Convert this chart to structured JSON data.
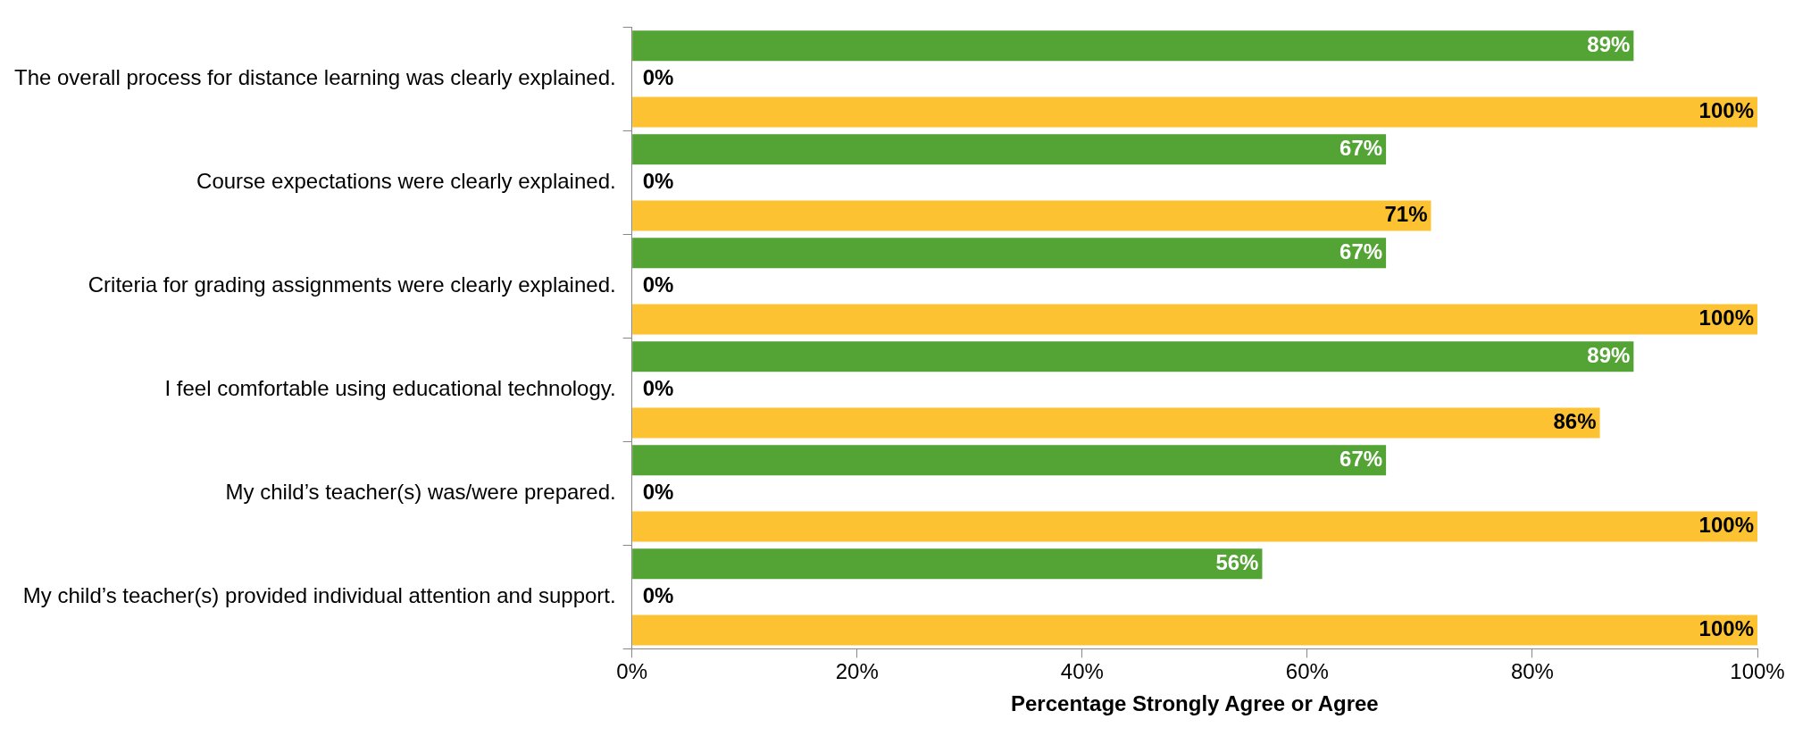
{
  "chart_data": {
    "type": "bar",
    "orientation": "horizontal",
    "categories": [
      "The overall process for distance learning was clearly explained.",
      "Course expectations were clearly explained.",
      "Criteria for grading assignments were clearly explained.",
      "I feel comfortable using educational technology.",
      "My child’s teacher(s) was/were prepared.",
      "My child’s teacher(s) provided individual attention and support."
    ],
    "series": [
      {
        "color": "#54a335",
        "values": [
          89,
          67,
          67,
          89,
          67,
          56
        ],
        "value_labels": [
          "89%",
          "67%",
          "67%",
          "89%",
          "67%",
          "56%"
        ]
      },
      {
        "color": "#4472c4",
        "values": [
          0,
          0,
          0,
          0,
          0,
          0
        ],
        "value_labels": [
          "0%",
          "0%",
          "0%",
          "0%",
          "0%",
          "0%"
        ]
      },
      {
        "color": "#fdc231",
        "values": [
          100,
          71,
          100,
          86,
          100,
          100
        ],
        "value_labels": [
          "100%",
          "71%",
          "100%",
          "86%",
          "100%",
          "100%"
        ]
      }
    ],
    "xlim": [
      0,
      100
    ],
    "xticks": [
      {
        "value": 0,
        "label": "0%"
      },
      {
        "value": 20,
        "label": "20%"
      },
      {
        "value": 40,
        "label": "40%"
      },
      {
        "value": 60,
        "label": "60%"
      },
      {
        "value": 80,
        "label": "80%"
      },
      {
        "value": 100,
        "label": "100%"
      }
    ],
    "xlabel": "Percentage Strongly Agree or Agree",
    "grid": false,
    "legend": false
  }
}
